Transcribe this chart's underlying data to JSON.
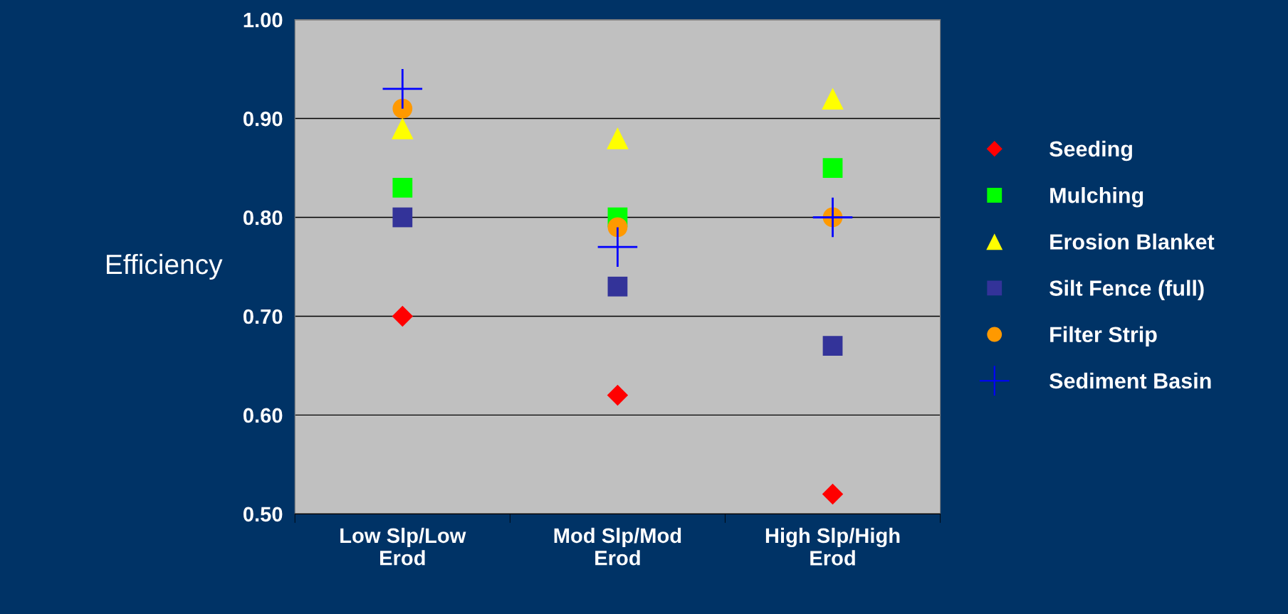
{
  "chart_data": {
    "type": "scatter",
    "ylabel": "Efficiency",
    "categories": [
      "Low Slp/Low Erod",
      "Mod Slp/Mod Erod",
      "High Slp/High Erod"
    ],
    "series": [
      {
        "name": "Seeding",
        "color": "#ff0000",
        "marker": "diamond",
        "values": [
          0.7,
          0.62,
          0.52
        ]
      },
      {
        "name": "Mulching",
        "color": "#00ff00",
        "marker": "square",
        "values": [
          0.83,
          0.8,
          0.85
        ]
      },
      {
        "name": "Erosion Blanket",
        "color": "#ffff00",
        "marker": "triangle",
        "values": [
          0.89,
          0.88,
          0.92
        ]
      },
      {
        "name": "Silt Fence (full)",
        "color": "#333399",
        "marker": "square",
        "values": [
          0.8,
          0.73,
          0.67
        ]
      },
      {
        "name": "Filter Strip",
        "color": "#ff9900",
        "marker": "circle",
        "values": [
          0.91,
          0.79,
          0.8
        ]
      },
      {
        "name": "Sediment Basin",
        "color": "#0000ff",
        "marker": "cross",
        "values": [
          0.93,
          0.77,
          0.8
        ]
      }
    ],
    "ylim": [
      0.5,
      1.0
    ],
    "yticks": [
      {
        "value": 0.5,
        "label": "0.50"
      },
      {
        "value": 0.6,
        "label": "0.60"
      },
      {
        "value": 0.7,
        "label": "0.70"
      },
      {
        "value": 0.8,
        "label": "0.80"
      },
      {
        "value": 0.9,
        "label": "0.90"
      },
      {
        "value": 1.0,
        "label": "1.00"
      }
    ],
    "grid": "y",
    "legend": "right"
  }
}
